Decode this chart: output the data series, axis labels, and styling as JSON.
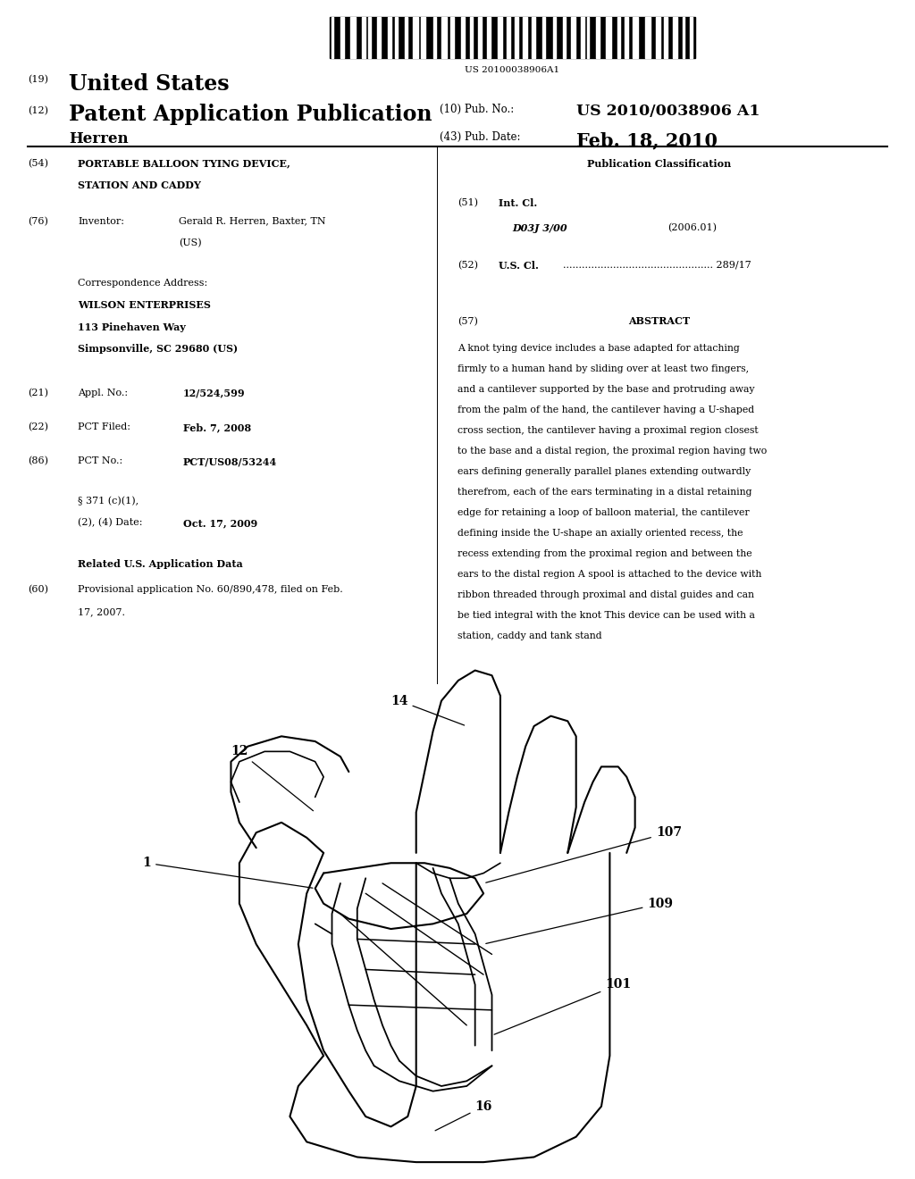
{
  "background_color": "#ffffff",
  "barcode_text": "US 20100038906A1",
  "country": "United States",
  "doc_type": "Patent Application Publication",
  "num19": "(19)",
  "num12": "(12)",
  "pub_no_label": "(10) Pub. No.:",
  "pub_no": "US 2010/0038906 A1",
  "pub_date_label": "(43) Pub. Date:",
  "pub_date": "Feb. 18, 2010",
  "inventor_name": "Herren",
  "title_num": "(54)",
  "inv_num": "(76)",
  "inv_label": "Inventor:",
  "corr_line1": "WILSON ENTERPRISES",
  "corr_line2": "113 Pinehaven Way",
  "corr_line3": "Simpsonville, SC 29680 (US)",
  "appl_num": "(21)",
  "appl_label": "Appl. No.:",
  "appl_value": "12/524,599",
  "pct_filed_num": "(22)",
  "pct_filed_label": "PCT Filed:",
  "pct_filed_value": "Feb. 7, 2008",
  "pct_no_num": "(86)",
  "pct_no_label": "PCT No.:",
  "pct_no_value": "PCT/US08/53244",
  "section371_value": "Oct. 17, 2009",
  "related_title": "Related U.S. Application Data",
  "related_num": "(60)",
  "pub_class_title": "Publication Classification",
  "int_cl_num": "(51)",
  "int_cl_label": "Int. Cl.",
  "int_cl_value": "D03J 3/00",
  "int_cl_year": "(2006.01)",
  "us_cl_num": "(52)",
  "us_cl_label": "U.S. Cl.",
  "us_cl_value": "289/17",
  "abstract_num": "(57)",
  "abstract_title": "ABSTRACT",
  "abstract_text": "A knot tying device includes a base adapted for attaching\nfirmly to a human hand by sliding over at least two fingers,\nand a cantilever supported by the base and protruding away\nfrom the palm of the hand, the cantilever having a U-shaped\ncross section, the cantilever having a proximal region closest\nto the base and a distal region, the proximal region having two\nears defining generally parallel planes extending outwardly\ntherefrom, each of the ears terminating in a distal retaining\nedge for retaining a loop of balloon material, the cantilever\ndefining inside the U-shape an axially oriented recess, the\nrecess extending from the proximal region and between the\nears to the distal region A spool is attached to the device with\nribbon threaded through proximal and distal guides and can\nbe tied integral with the knot This device can be used with a\nstation, caddy and tank stand"
}
